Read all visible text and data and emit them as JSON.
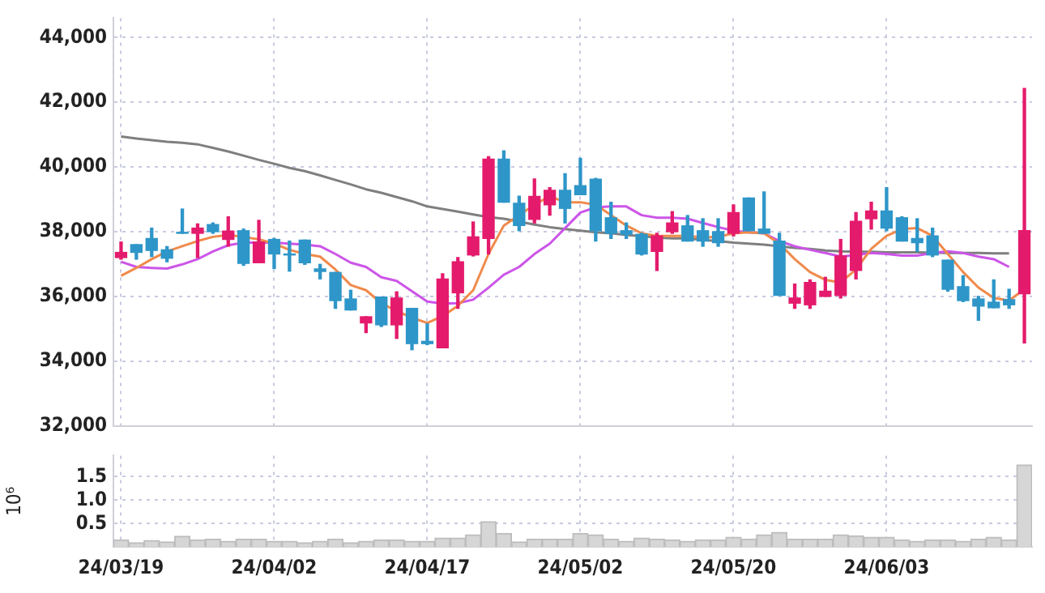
{
  "chart_data": [
    {
      "type": "candlestick",
      "tick_labels": "y",
      "grid": true,
      "categories": [
        null,
        null,
        null,
        null,
        null,
        null,
        null,
        null,
        null,
        null,
        null,
        null,
        null,
        null,
        null,
        null,
        null,
        null,
        null,
        null,
        null,
        null,
        null,
        null,
        null,
        null,
        null,
        null,
        null,
        null,
        null,
        null,
        null,
        null,
        null,
        null,
        null,
        null,
        null,
        null,
        null,
        null,
        null,
        null,
        null,
        null,
        null,
        null,
        null,
        null,
        null,
        null,
        null,
        null,
        null,
        null,
        null,
        null,
        null,
        null
      ],
      "ohlc": [
        [
          37200,
          37680,
          37150,
          37360
        ],
        [
          37600,
          37600,
          37150,
          37360
        ],
        [
          37790,
          38110,
          37230,
          37420
        ],
        [
          37440,
          37540,
          37070,
          37180
        ],
        [
          37980,
          38700,
          37950,
          37950
        ],
        [
          37950,
          38240,
          37200,
          38110
        ],
        [
          38220,
          38270,
          37950,
          38000
        ],
        [
          37760,
          38460,
          37550,
          38020
        ],
        [
          38030,
          38080,
          36960,
          37020
        ],
        [
          37040,
          38350,
          37040,
          37680
        ],
        [
          37760,
          37790,
          36860,
          37310
        ],
        [
          37310,
          37710,
          36780,
          37280
        ],
        [
          37740,
          37740,
          36990,
          37040
        ],
        [
          36850,
          36990,
          36540,
          36770
        ],
        [
          36740,
          36740,
          35630,
          35870
        ],
        [
          35920,
          36190,
          35580,
          35580
        ],
        [
          35180,
          35370,
          34880,
          35370
        ],
        [
          35980,
          35980,
          35070,
          35120
        ],
        [
          35120,
          36140,
          34700,
          35950
        ],
        [
          35630,
          35630,
          34350,
          34540
        ],
        [
          34610,
          35150,
          34510,
          34540
        ],
        [
          34410,
          36700,
          34410,
          36540
        ],
        [
          36110,
          37200,
          35630,
          37070
        ],
        [
          37280,
          38300,
          37250,
          37840
        ],
        [
          37790,
          40320,
          37310,
          40240
        ],
        [
          40240,
          40500,
          38910,
          38910
        ],
        [
          38880,
          39100,
          38030,
          38190
        ],
        [
          38380,
          39630,
          38270,
          39090
        ],
        [
          38830,
          39360,
          38510,
          39280
        ],
        [
          39280,
          39790,
          38270,
          38720
        ],
        [
          39420,
          40270,
          39140,
          39140
        ],
        [
          39620,
          39650,
          37710,
          38030
        ],
        [
          38430,
          38910,
          37790,
          37950
        ],
        [
          38030,
          38270,
          37790,
          37920
        ],
        [
          37920,
          37950,
          37280,
          37310
        ],
        [
          37390,
          37950,
          36800,
          37870
        ],
        [
          38000,
          38620,
          37950,
          38270
        ],
        [
          38180,
          38500,
          37710,
          37710
        ],
        [
          38030,
          38400,
          37550,
          37710
        ],
        [
          38000,
          38400,
          37550,
          37660
        ],
        [
          37950,
          38830,
          37870,
          38590
        ],
        [
          39040,
          39040,
          38030,
          38030
        ],
        [
          38080,
          39230,
          37950,
          37950
        ],
        [
          37710,
          37950,
          36030,
          36030
        ],
        [
          35790,
          36380,
          35630,
          35950
        ],
        [
          35740,
          36510,
          35630,
          36430
        ],
        [
          36000,
          36590,
          36000,
          36160
        ],
        [
          36030,
          37760,
          35950,
          37250
        ],
        [
          36800,
          38590,
          36540,
          38320
        ],
        [
          38400,
          38910,
          38080,
          38640
        ],
        [
          38640,
          39360,
          38030,
          38110
        ],
        [
          38430,
          38460,
          37710,
          37710
        ],
        [
          37790,
          38400,
          37390,
          37660
        ],
        [
          37870,
          38110,
          37230,
          37280
        ],
        [
          37120,
          37120,
          36160,
          36220
        ],
        [
          36300,
          36640,
          35840,
          35870
        ],
        [
          35920,
          36000,
          35260,
          35700
        ],
        [
          35820,
          36510,
          35650,
          35650
        ],
        [
          35900,
          36220,
          35630,
          35740
        ],
        [
          36080,
          42430,
          34560,
          38030
        ]
      ],
      "colors": [
        "#e41b6c",
        "#2e96c8",
        "#2e96c8",
        "#2e96c8",
        "#2e96c8",
        "#e41b6c",
        "#2e96c8",
        "#e41b6c",
        "#2e96c8",
        "#e41b6c",
        "#2e96c8",
        "#2e96c8",
        "#2e96c8",
        "#2e96c8",
        "#2e96c8",
        "#2e96c8",
        "#e41b6c",
        "#2e96c8",
        "#e41b6c",
        "#2e96c8",
        "#2e96c8",
        "#e41b6c",
        "#e41b6c",
        "#e41b6c",
        "#e41b6c",
        "#2e96c8",
        "#2e96c8",
        "#e41b6c",
        "#e41b6c",
        "#2e96c8",
        "#2e96c8",
        "#2e96c8",
        "#2e96c8",
        "#2e96c8",
        "#2e96c8",
        "#e41b6c",
        "#e41b6c",
        "#2e96c8",
        "#2e96c8",
        "#2e96c8",
        "#e41b6c",
        "#2e96c8",
        "#2e96c8",
        "#2e96c8",
        "#e41b6c",
        "#e41b6c",
        "#e41b6c",
        "#e41b6c",
        "#e41b6c",
        "#e41b6c",
        "#2e96c8",
        "#2e96c8",
        "#2e96c8",
        "#2e96c8",
        "#2e96c8",
        "#2e96c8",
        "#2e96c8",
        "#2e96c8",
        "#2e96c8",
        "#e41b6c"
      ],
      "series": [
        {
          "type": "line",
          "color": "#f08a4b",
          "values": [
            36640,
            36880,
            37150,
            37390,
            37550,
            37710,
            37840,
            37900,
            37840,
            37760,
            37630,
            37440,
            37310,
            37230,
            36830,
            36350,
            36190,
            35790,
            35550,
            35340,
            35180,
            35390,
            35710,
            36190,
            37310,
            38190,
            null,
            38830,
            39100,
            38910,
            38910,
            38830,
            38510,
            38190,
            37950,
            37870,
            37870,
            37870,
            37820,
            37840,
            37950,
            37980,
            37950,
            37630,
            37150,
            36750,
            36510,
            36430,
            36830,
            37470,
            37870,
            38080,
            38110,
            37870,
            37310,
            36750,
            36270,
            35950,
            35870,
            36220
          ]
        },
        {
          "type": "line",
          "color": "#cc55e8",
          "values": [
            37070,
            36910,
            36880,
            36860,
            36990,
            37150,
            37390,
            37580,
            37660,
            37660,
            37660,
            37630,
            37600,
            37550,
            37310,
            37040,
            36910,
            36590,
            36480,
            36160,
            35840,
            35780,
            35790,
            35900,
            36270,
            36670,
            36910,
            37310,
            37630,
            38110,
            38590,
            38750,
            38780,
            38780,
            38510,
            38430,
            38430,
            38400,
            38270,
            38140,
            38030,
            37980,
            37950,
            37710,
            37550,
            37440,
            37340,
            37230,
            37280,
            37340,
            37310,
            37260,
            37260,
            37340,
            37390,
            37340,
            37230,
            37150,
            36910,
            null
          ]
        },
        {
          "type": "line",
          "color": "#7f7f7f",
          "values": [
            40940,
            40880,
            40830,
            40780,
            40750,
            40700,
            40590,
            40480,
            40350,
            40220,
            40100,
            39970,
            39870,
            39740,
            39600,
            39460,
            39310,
            39200,
            39070,
            38940,
            38780,
            38700,
            38620,
            38530,
            38450,
            38400,
            null,
            38220,
            38140,
            38080,
            38030,
            37980,
            37950,
            37900,
            37860,
            37820,
            37790,
            37790,
            37740,
            37710,
            37660,
            37630,
            37600,
            37550,
            37500,
            37470,
            37420,
            37390,
            37380,
            37380,
            37360,
            37360,
            37360,
            null,
            37340,
            37340,
            37340,
            37330,
            37330,
            null
          ]
        }
      ],
      "ylim": [
        32000,
        44600
      ],
      "yticks": [
        {
          "value": 32000,
          "label": "32,000"
        },
        {
          "value": 34000,
          "label": "34,000"
        },
        {
          "value": 36000,
          "label": "36,000"
        },
        {
          "value": 38000,
          "label": "38,000"
        },
        {
          "value": 40000,
          "label": "40,000"
        },
        {
          "value": 42000,
          "label": "42,000"
        },
        {
          "value": 44000,
          "label": "44,000"
        }
      ]
    },
    {
      "type": "bar",
      "grid": true,
      "ylabel": "10⁶",
      "color": "#d6d6d6",
      "categories": [
        "24/03/19",
        null,
        null,
        null,
        null,
        null,
        null,
        null,
        null,
        null,
        "24/04/02",
        null,
        null,
        null,
        null,
        null,
        null,
        null,
        null,
        null,
        "24/04/17",
        null,
        null,
        null,
        null,
        null,
        null,
        null,
        null,
        null,
        "24/05/02",
        null,
        null,
        null,
        null,
        null,
        null,
        null,
        null,
        null,
        "24/05/20",
        null,
        null,
        null,
        null,
        null,
        null,
        null,
        null,
        null,
        "24/06/03",
        null,
        null,
        null,
        null,
        null,
        null,
        null,
        null,
        null
      ],
      "values": [
        0.15,
        0.09,
        0.14,
        0.11,
        0.23,
        0.15,
        0.17,
        0.12,
        0.17,
        0.17,
        0.12,
        0.12,
        0.09,
        0.12,
        0.17,
        0.09,
        0.12,
        0.15,
        0.15,
        0.12,
        0.12,
        0.19,
        0.19,
        0.26,
        0.54,
        0.29,
        0.11,
        0.17,
        0.17,
        0.17,
        0.29,
        0.26,
        0.17,
        0.12,
        0.19,
        0.17,
        0.15,
        0.12,
        0.15,
        0.15,
        0.21,
        0.17,
        0.26,
        0.31,
        0.17,
        0.17,
        0.17,
        0.26,
        0.24,
        0.21,
        0.21,
        0.15,
        0.12,
        0.15,
        0.15,
        0.12,
        0.17,
        0.21,
        0.15,
        1.75
      ],
      "ylim": [
        0,
        1.95
      ],
      "yticks": [
        0.5,
        {
          "value": 1,
          "label": "1.0"
        },
        1.5
      ]
    }
  ]
}
